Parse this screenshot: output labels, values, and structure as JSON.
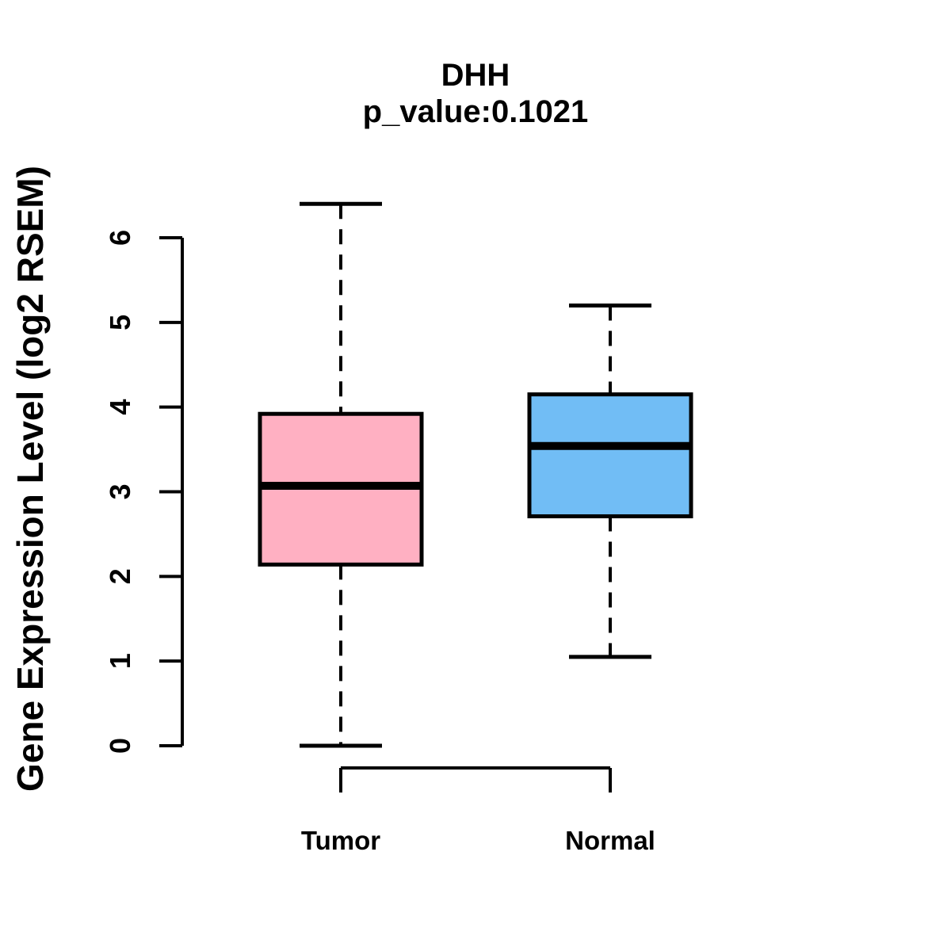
{
  "chart_data": {
    "type": "boxplot",
    "title": "DHH",
    "subtitle": "p_value:0.1021",
    "ylabel": "Gene Expression Level (log2 RSEM)",
    "categories": [
      "Tumor",
      "Normal"
    ],
    "ylim": [
      0,
      6
    ],
    "yticks": [
      0,
      1,
      2,
      3,
      4,
      5,
      6
    ],
    "grid": false,
    "legend": "none",
    "series": [
      {
        "name": "Tumor",
        "color": "#ffb0c2",
        "whisker_low": 0.0,
        "q1": 2.14,
        "median": 3.07,
        "q3": 3.92,
        "whisker_high": 6.4
      },
      {
        "name": "Normal",
        "color": "#71bdf5",
        "whisker_low": 1.05,
        "q1": 2.71,
        "median": 3.54,
        "q3": 4.15,
        "whisker_high": 5.2
      }
    ],
    "axis_color": "#000000",
    "box_border_color": "#000000",
    "median_color": "#000000",
    "background_color": "#ffffff"
  }
}
